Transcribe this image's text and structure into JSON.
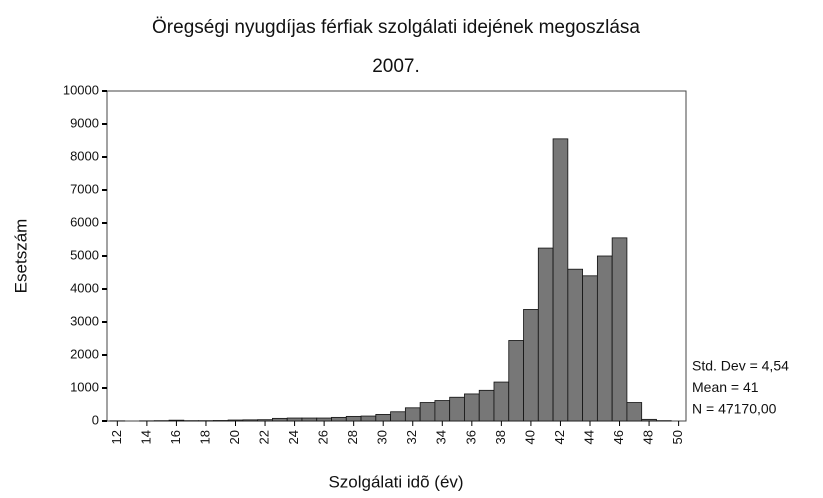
{
  "chart_data": {
    "type": "histogram",
    "title": "Öregségi nyugdíjas férfiak szolgálati idejének megoszlása",
    "subtitle": "2007.",
    "x_label": "Szolgálati idõ (év)",
    "y_label": "Esetszám",
    "bins": [
      11.5,
      12.5,
      13.5,
      14.5,
      15.5,
      16.5,
      17.5,
      18.5,
      19.5,
      20.5,
      21.5,
      22.5,
      23.5,
      24.5,
      25.5,
      26.5,
      27.5,
      28.5,
      29.5,
      30.5,
      31.5,
      32.5,
      33.5,
      34.5,
      35.5,
      36.5,
      37.5,
      38.5,
      39.5,
      40.5,
      41.5,
      42.5,
      43.5,
      44.5,
      45.5,
      46.5,
      47.5,
      48.5,
      49.5,
      50.5
    ],
    "values": [
      5,
      0,
      5,
      10,
      25,
      10,
      10,
      15,
      30,
      35,
      40,
      80,
      90,
      90,
      90,
      110,
      140,
      150,
      200,
      280,
      400,
      560,
      620,
      720,
      820,
      930,
      1180,
      2440,
      3380,
      5240,
      8550,
      4600,
      4400,
      5000,
      5550,
      560,
      50,
      10,
      0
    ],
    "color": "#777777",
    "xlim": [
      11.3,
      50.5
    ],
    "xticks": [
      12,
      14,
      16,
      18,
      20,
      22,
      24,
      26,
      28,
      30,
      32,
      34,
      36,
      38,
      40,
      42,
      44,
      46,
      48,
      50
    ],
    "ylim": [
      0,
      10000
    ],
    "yticks": [
      0,
      1000,
      2000,
      3000,
      4000,
      5000,
      6000,
      7000,
      8000,
      9000,
      10000
    ],
    "annotations": [
      "Std. Dev = 4,54",
      "Mean = 41",
      "N = 47170,00"
    ]
  }
}
